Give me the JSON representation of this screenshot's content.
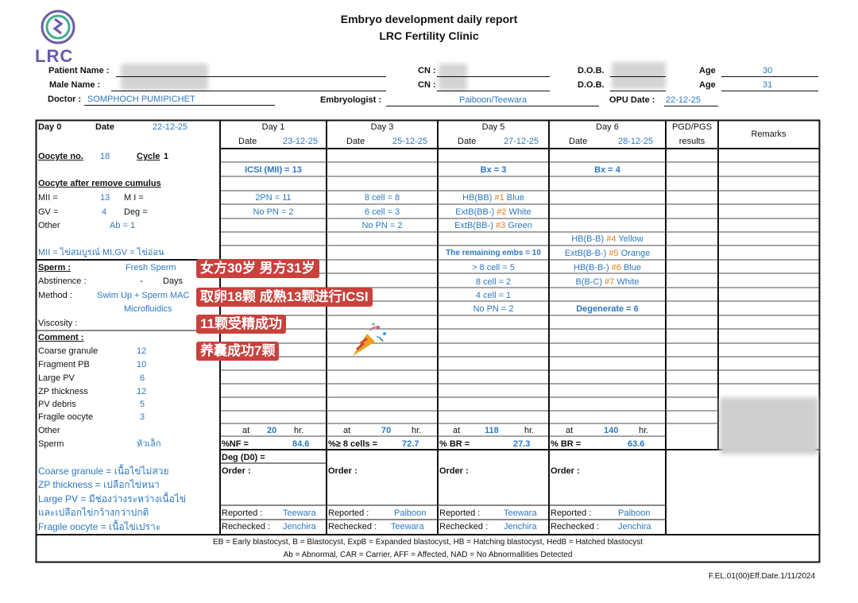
{
  "header": {
    "logo_text": "LRC",
    "title": "Embryo development daily report",
    "subtitle": "LRC Fertility Clinic"
  },
  "patient": {
    "patient_name_label": "Patient Name :",
    "male_name_label": "Male Name :",
    "doctor_label": "Doctor :",
    "doctor_value": "SOMPHOCH PUMIPICHET",
    "cn_label": "CN :",
    "cn_label2": "CN :",
    "dob_label": "D.O.B.",
    "dob_label2": "D.O.B.",
    "age_label": "Age",
    "age_label2": "Age",
    "age_female": "30",
    "age_male": "31",
    "embryologist_label": "Embryologist :",
    "embryologist_value": "Paiboon/Teewara",
    "opu_label": "OPU Date :",
    "opu_value": "22-12-25"
  },
  "left": {
    "day0": "Day 0",
    "date_label": "Date",
    "date_value": "22-12-25",
    "oocyte_no_label": "Oocyte no.",
    "oocyte_no_value": "18",
    "cycle_label": "Cycle",
    "cycle_value": "1",
    "after_cumulus": "Oocyte after remove cumulus",
    "mii_label": "MII =",
    "mii_value": "13",
    "mi_label": "M I =",
    "gv_label": "GV =",
    "gv_value": "4",
    "deg_label": "Deg =",
    "other_label": "Other",
    "other_value": "Ab = 1",
    "mii_note": "MII = ไข่สมบูรณ์ MI,GV = ไข่อ่อน",
    "sperm_label": "Sperm :",
    "sperm_value": "Fresh Sperm",
    "abstinence_label": "Abstinence :",
    "abstinence_value": "-",
    "days_label": "Days",
    "method_label": "Method :",
    "method_value": "Swim Up + Sperm MAC",
    "method_value2": "Microfluidics",
    "viscosity_label": "Viscosity :",
    "comment_label": "Comment :",
    "comments": [
      {
        "label": "Coarse granule",
        "value": "12"
      },
      {
        "label": "Fragment PB",
        "value": "10"
      },
      {
        "label": "Large PV",
        "value": "6"
      },
      {
        "label": "ZP thickness",
        "value": "12"
      },
      {
        "label": "PV debris",
        "value": "5"
      },
      {
        "label": "Fragile oocyte",
        "value": "3"
      },
      {
        "label": "Other",
        "value": ""
      },
      {
        "label": "Sperm",
        "value": "หัวเล็ก"
      }
    ],
    "notes": [
      "Coarse granule = เนื้อไข่ไม่สวย",
      "ZP thickness = เปลือกไข่หนา",
      "Large PV = มีช่องว่างระหว่างเนื้อไข่",
      "และเปลือกไข่กว้างกว่าปกติ",
      "Fragile oocyte = เนื้อไข่เปราะ"
    ]
  },
  "days": [
    {
      "title": "Day 1",
      "date_label": "Date",
      "date": "23-12-25",
      "headline": "ICSI (MII) = 13",
      "lines": [
        "2PN = 11",
        "No PN = 2"
      ],
      "at_label": "at",
      "hr_value": "20",
      "hr_label": "hr.",
      "stat_label": "%NF =",
      "stat_value": "84.6",
      "extra": "Deg (D0) =",
      "order_label": "Order :",
      "reported_label": "Reported :",
      "reported": "Teewara",
      "rechecked_label": "Rechecked :",
      "rechecked": "Jenchira"
    },
    {
      "title": "Day 3",
      "date_label": "Date",
      "date": "25-12-25",
      "headline": "",
      "lines": [
        "8 cell = 8",
        "6 cell = 3",
        "No PN = 2"
      ],
      "at_label": "at",
      "hr_value": "70",
      "hr_label": "hr.",
      "stat_label": "%≥ 8 cells =",
      "stat_value": "72.7",
      "order_label": "Order :",
      "reported_label": "Reported :",
      "reported": "Paiboon",
      "rechecked_label": "Rechecked :",
      "rechecked": "Teewara"
    },
    {
      "title": "Day 5",
      "date_label": "Date",
      "date": "27-12-25",
      "headline": "Bx = 3",
      "blasts": [
        {
          "pre": "HB(BB) ",
          "num": "#1",
          "post": " Blue"
        },
        {
          "pre": "ExtB(BB-) ",
          "num": "#2",
          "post": " White"
        },
        {
          "pre": "ExtB(BB-) ",
          "num": "#3",
          "post": " Green"
        }
      ],
      "remaining": "The remaining embs = 10",
      "lines": [
        "> 8 cell = 5",
        "8 cell = 2",
        "4 cell = 1",
        "No PN = 2"
      ],
      "at_label": "at",
      "hr_value": "118",
      "hr_label": "hr.",
      "stat_label": "% BR =",
      "stat_value": "27.3",
      "order_label": "Order :",
      "reported_label": "Reported :",
      "reported": "Teewara",
      "rechecked_label": "Rechecked :",
      "rechecked": "Jenchira"
    },
    {
      "title": "Day 6",
      "date_label": "Date",
      "date": "28-12-25",
      "headline": "Bx = 4",
      "blasts": [
        {
          "pre": "HB(B-B) ",
          "num": "#4",
          "post": " Yellow"
        },
        {
          "pre": "ExtB(B-B-) ",
          "num": "#5",
          "post": " Orange"
        },
        {
          "pre": "HB(B-B-) ",
          "num": "#6",
          "post": " Blue"
        },
        {
          "pre": "B(B-C) ",
          "num": "#7",
          "post": " White"
        }
      ],
      "degenerate": "Degenerate = 6",
      "at_label": "at",
      "hr_value": "140",
      "hr_label": "hr.",
      "stat_label": "% BR =",
      "stat_value": "63.6",
      "order_label": "Order :",
      "reported_label": "Reported :",
      "reported": "Paiboon",
      "rechecked_label": "Rechecked :",
      "rechecked": "Jenchira"
    }
  ],
  "pgd_header": "PGD/PGS",
  "pgd_header2": "results",
  "remarks_header": "Remarks",
  "legend": [
    "EB = Early blastocyst, B = Blastocyst, ExpB = Expanded blastocyst, HB = Hatching blastocyst, HedB = Hatched blastocyst",
    "Ab = Abnormal, CAR = Carrier, AFF = Affected, NAD = No Abnormallities Detected"
  ],
  "form_code": "F.EL.01(00)Eff.Date.1/11/2024",
  "overlays": [
    "女方30岁 男方31岁",
    "取卵18颗 成熟13颗进行ICSI",
    "11颗受精成功",
    "养囊成功7颗"
  ],
  "colors": {
    "blue": "#2b78c2",
    "tag": "#c9413c",
    "orange": "#e07b1a"
  }
}
